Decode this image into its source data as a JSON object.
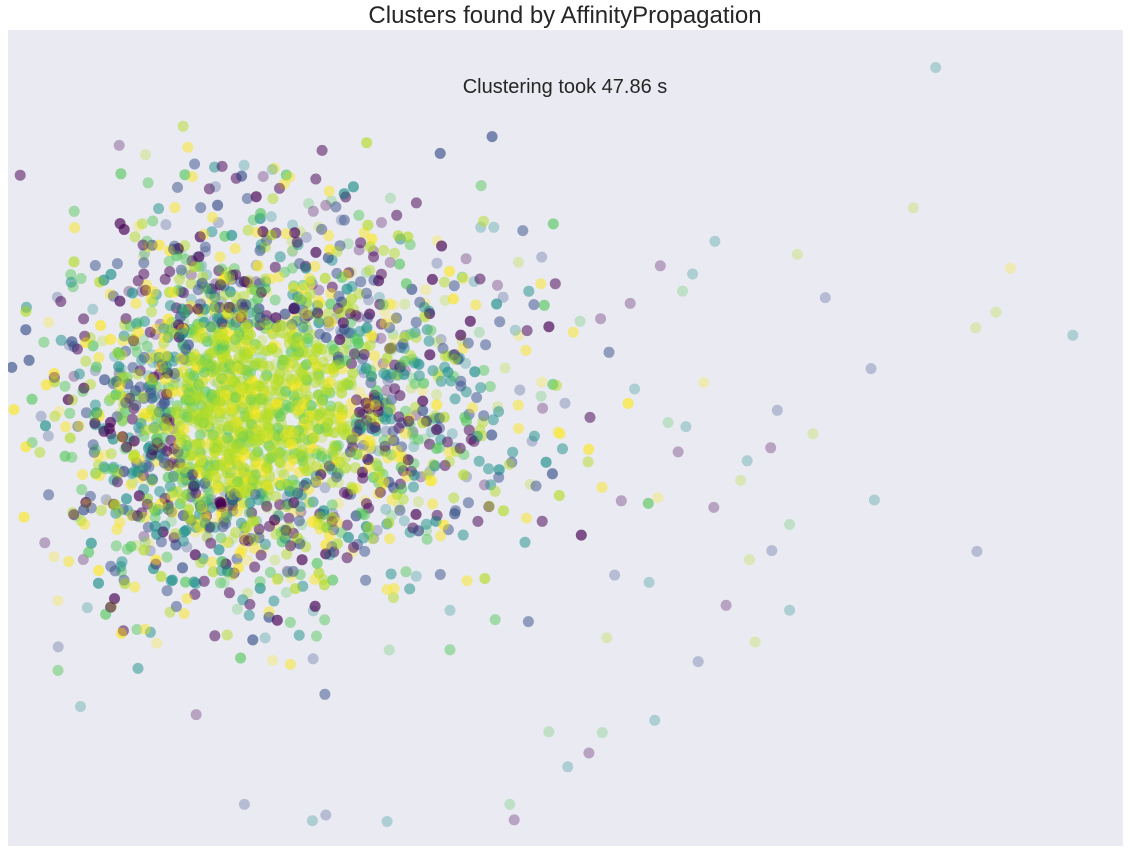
{
  "chart_data": {
    "type": "scatter",
    "title": "Clusters found by AffinityPropagation",
    "annotation": "Clustering took 47.86 s",
    "xlabel": "",
    "ylabel": "",
    "xlim": [
      0,
      100
    ],
    "ylim": [
      0,
      100
    ],
    "grid": false,
    "axes_visible": false,
    "marker_alpha": 0.3,
    "colormap": "viridis",
    "palette": [
      "#440154",
      "#3b528b",
      "#21918c",
      "#5ec962",
      "#b5de2b",
      "#fde725"
    ],
    "dense_core": {
      "center_x": 21.5,
      "center_y": 53.5,
      "spread_x": 7.5,
      "spread_y": 11.5,
      "approx_points": 5200
    },
    "outlier_points": [
      {
        "x": 83.2,
        "y": 95.4,
        "c": 2
      },
      {
        "x": 81.2,
        "y": 78.2,
        "c": 4
      },
      {
        "x": 89.9,
        "y": 70.8,
        "c": 5
      },
      {
        "x": 95.5,
        "y": 62.6,
        "c": 2
      },
      {
        "x": 86.8,
        "y": 63.5,
        "c": 4
      },
      {
        "x": 88.6,
        "y": 65.4,
        "c": 4
      },
      {
        "x": 73.3,
        "y": 67.2,
        "c": 1
      },
      {
        "x": 70.8,
        "y": 72.5,
        "c": 4
      },
      {
        "x": 61.4,
        "y": 70.1,
        "c": 2
      },
      {
        "x": 58.5,
        "y": 71.1,
        "c": 0
      },
      {
        "x": 77.4,
        "y": 58.5,
        "c": 1
      },
      {
        "x": 77.7,
        "y": 42.4,
        "c": 2
      },
      {
        "x": 86.9,
        "y": 36.1,
        "c": 1
      },
      {
        "x": 72.2,
        "y": 50.5,
        "c": 4
      },
      {
        "x": 69.0,
        "y": 53.4,
        "c": 1
      },
      {
        "x": 68.4,
        "y": 48.8,
        "c": 0
      },
      {
        "x": 66.3,
        "y": 47.2,
        "c": 2
      },
      {
        "x": 63.3,
        "y": 41.5,
        "c": 0
      },
      {
        "x": 66.5,
        "y": 35.1,
        "c": 4
      },
      {
        "x": 70.1,
        "y": 39.4,
        "c": 3
      },
      {
        "x": 65.7,
        "y": 44.8,
        "c": 4
      },
      {
        "x": 68.5,
        "y": 36.2,
        "c": 1
      },
      {
        "x": 67.0,
        "y": 25.0,
        "c": 4
      },
      {
        "x": 70.1,
        "y": 28.9,
        "c": 2
      },
      {
        "x": 64.4,
        "y": 29.5,
        "c": 0
      },
      {
        "x": 4.5,
        "y": 24.4,
        "c": 1
      },
      {
        "x": 6.5,
        "y": 17.1,
        "c": 2
      },
      {
        "x": 23.7,
        "y": 82.9,
        "c": 2
      },
      {
        "x": 18.6,
        "y": 80.8,
        "c": 1
      },
      {
        "x": 34.3,
        "y": 79.4,
        "c": 3
      },
      {
        "x": 28.5,
        "y": 78.5,
        "c": 0
      },
      {
        "x": 45.4,
        "y": 3.2,
        "c": 0
      },
      {
        "x": 34.0,
        "y": 3.0,
        "c": 2
      },
      {
        "x": 27.3,
        "y": 3.1,
        "c": 2
      },
      {
        "x": 28.5,
        "y": 3.8,
        "c": 1
      },
      {
        "x": 45.0,
        "y": 5.1,
        "c": 3
      },
      {
        "x": 21.2,
        "y": 5.1,
        "c": 1
      },
      {
        "x": 53.3,
        "y": 13.9,
        "c": 3
      },
      {
        "x": 58.0,
        "y": 15.4,
        "c": 2
      },
      {
        "x": 52.1,
        "y": 11.4,
        "c": 0
      },
      {
        "x": 63.4,
        "y": 74.1,
        "c": 2
      },
      {
        "x": 60.5,
        "y": 68.0,
        "c": 3
      },
      {
        "x": 58.3,
        "y": 42.7,
        "c": 5
      },
      {
        "x": 54.4,
        "y": 33.2,
        "c": 1
      },
      {
        "x": 55.0,
        "y": 42.3,
        "c": 0
      },
      {
        "x": 57.5,
        "y": 32.3,
        "c": 2
      },
      {
        "x": 53.7,
        "y": 25.5,
        "c": 4
      },
      {
        "x": 61.9,
        "y": 22.6,
        "c": 1
      },
      {
        "x": 59.2,
        "y": 51.9,
        "c": 3
      },
      {
        "x": 60.1,
        "y": 48.3,
        "c": 0
      },
      {
        "x": 56.2,
        "y": 56.0,
        "c": 2
      },
      {
        "x": 62.4,
        "y": 56.8,
        "c": 5
      },
      {
        "x": 50.2,
        "y": 9.7,
        "c": 2
      },
      {
        "x": 48.5,
        "y": 14.0,
        "c": 3
      },
      {
        "x": 60.8,
        "y": 51.4,
        "c": 2
      },
      {
        "x": 55.8,
        "y": 66.5,
        "c": 0
      },
      {
        "x": 51.3,
        "y": 64.3,
        "c": 3
      }
    ]
  }
}
